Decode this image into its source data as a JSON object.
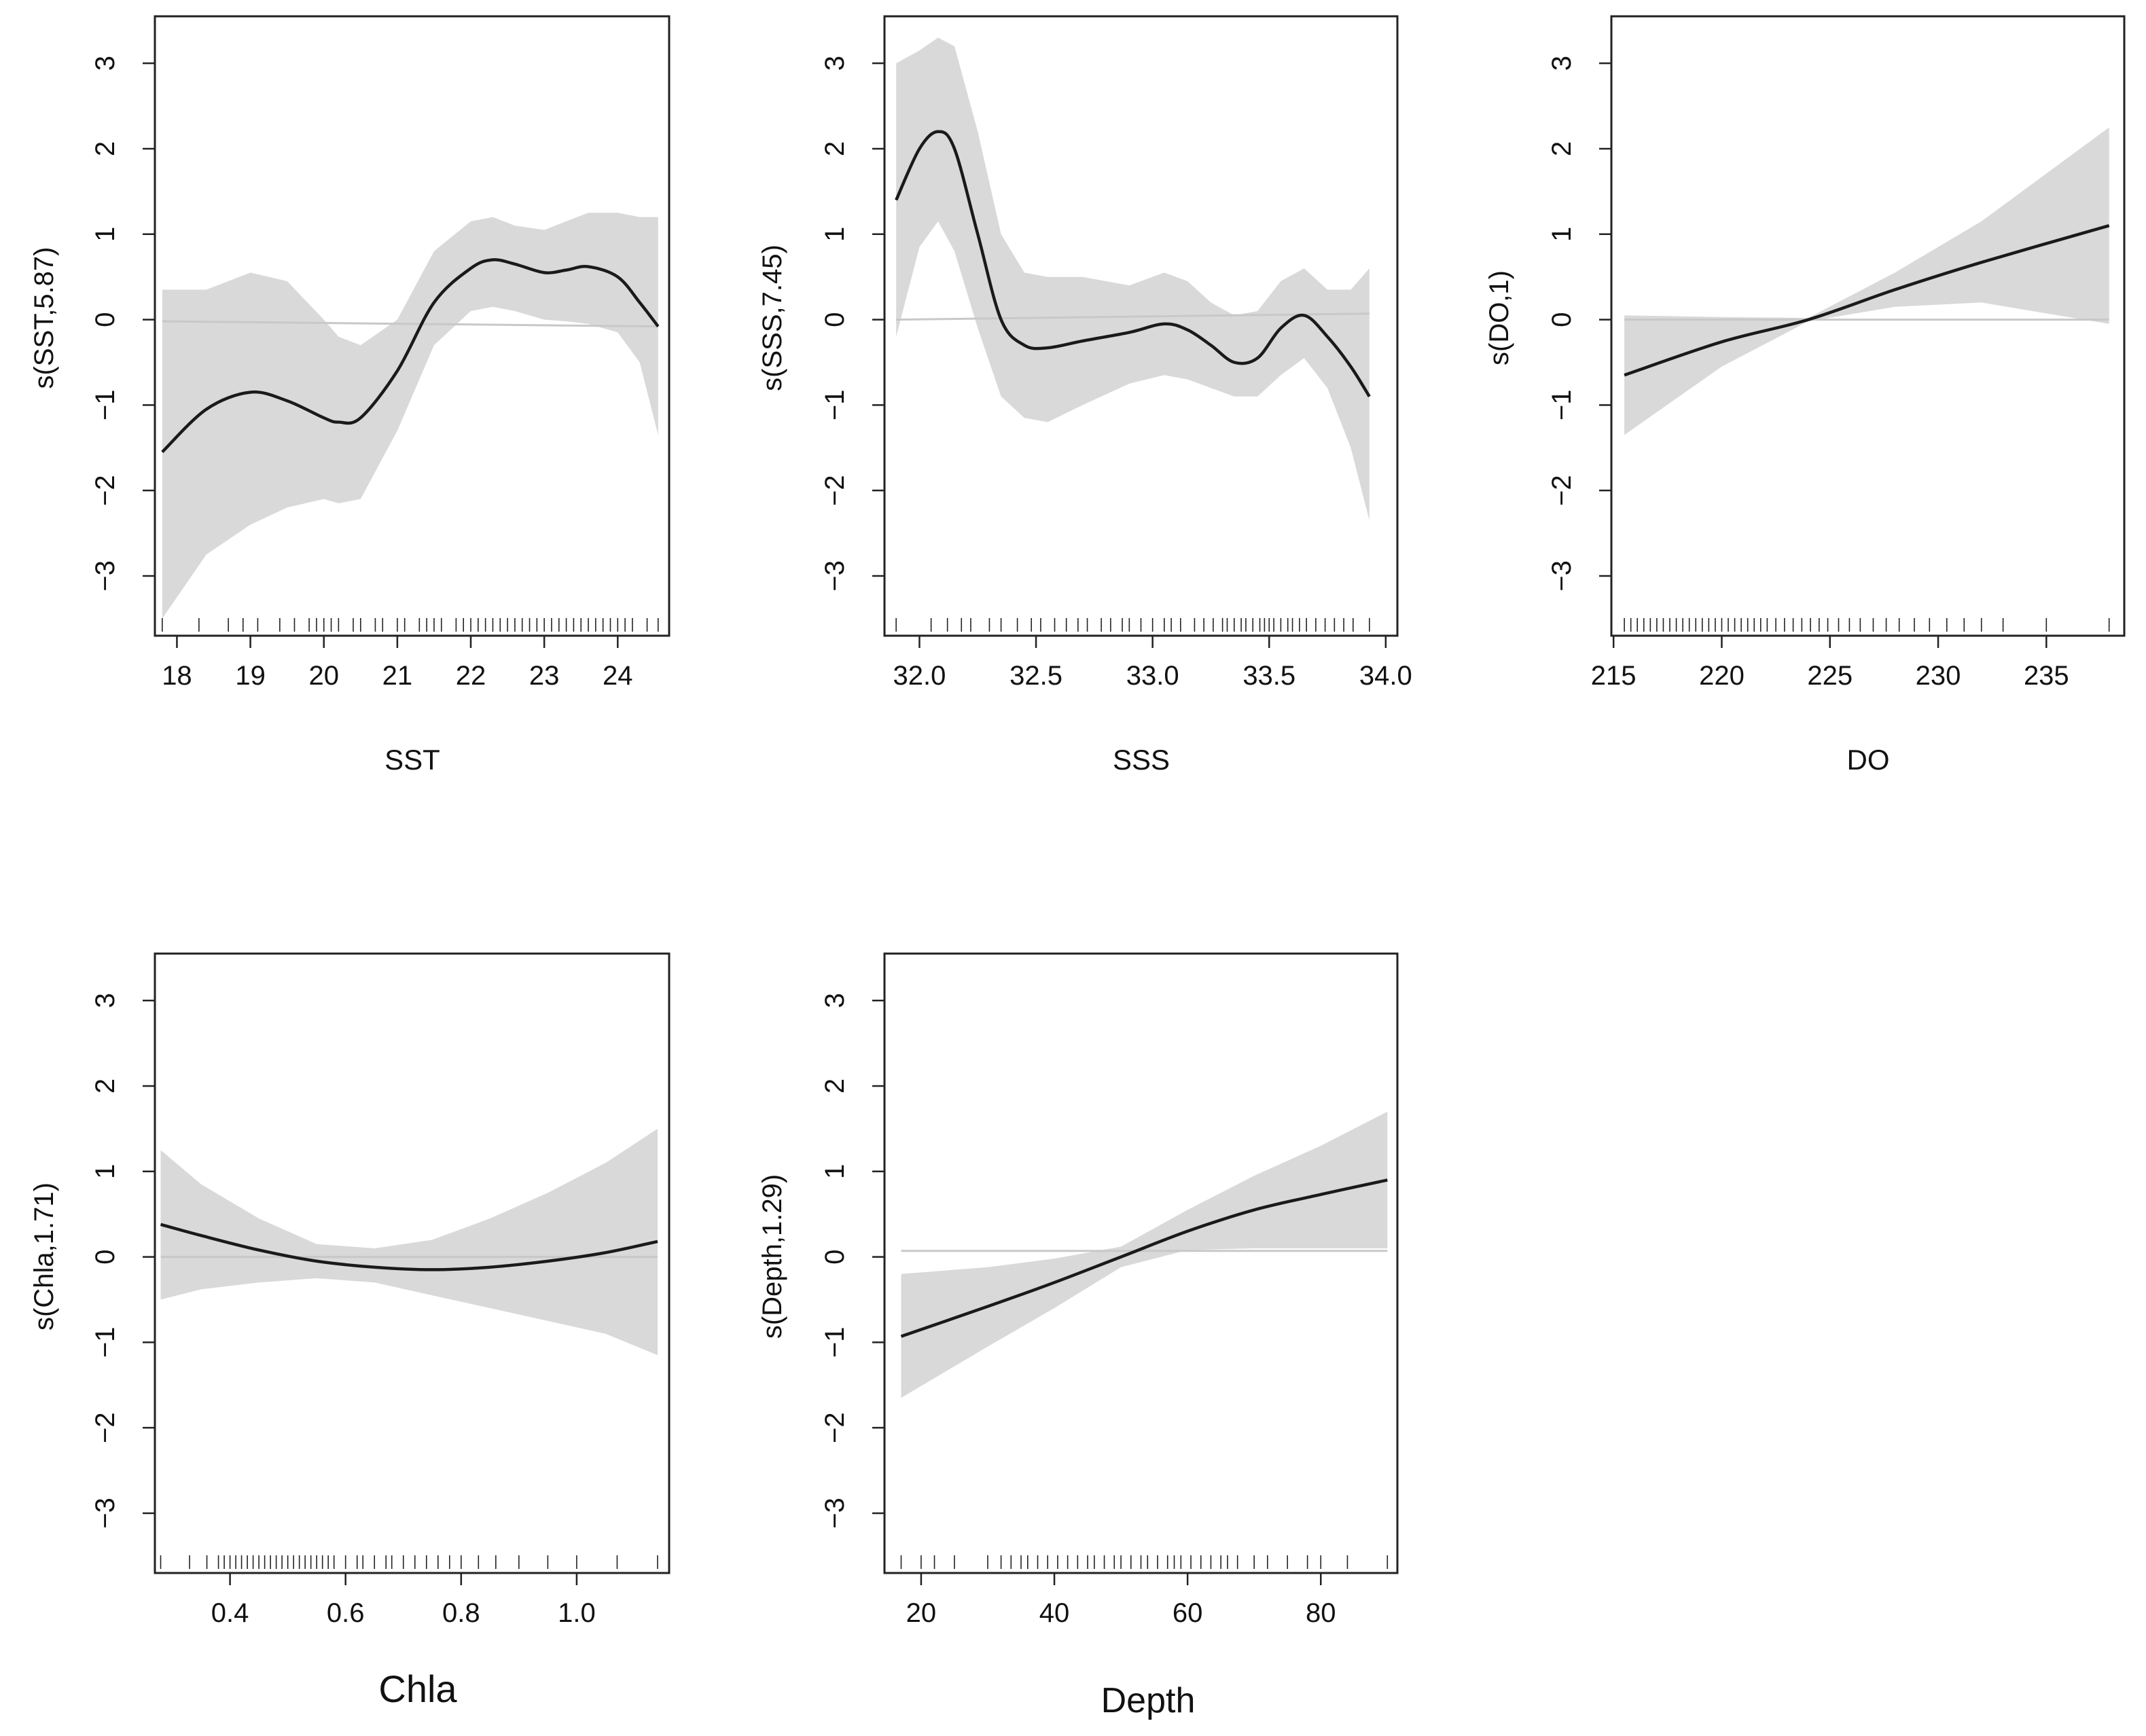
{
  "figure": {
    "background": "#ffffff",
    "band_color": "#d9d9d9",
    "line_color": "#1a1a1a",
    "zero_line_color": "#c8c8c8"
  },
  "chart_data": [
    {
      "type": "line",
      "xlabel": "SST",
      "ylabel": "s(SST,5.87)",
      "xlim": [
        17.7,
        24.7
      ],
      "ylim": [
        -3.7,
        3.55
      ],
      "xticks": [
        18,
        19,
        20,
        21,
        22,
        23,
        24
      ],
      "xtick_labels": [
        "18",
        "19",
        "20",
        "21",
        "22",
        "23",
        "24"
      ],
      "yticks": [
        -3,
        -2,
        -1,
        0,
        1,
        2,
        3
      ],
      "ytick_labels": [
        "−3",
        "−2",
        "−1",
        "0",
        "1",
        "2",
        "3"
      ],
      "x": [
        17.8,
        18.4,
        19.0,
        19.5,
        20.0,
        20.2,
        20.5,
        21.0,
        21.5,
        22.0,
        22.3,
        22.6,
        23.0,
        23.3,
        23.6,
        24.0,
        24.3,
        24.55
      ],
      "y": [
        -1.55,
        -1.05,
        -0.85,
        -0.95,
        -1.15,
        -1.2,
        -1.15,
        -0.6,
        0.2,
        0.6,
        0.7,
        0.65,
        0.55,
        0.58,
        0.62,
        0.5,
        0.2,
        -0.08
      ],
      "upper": [
        0.35,
        0.35,
        0.55,
        0.45,
        0.0,
        -0.2,
        -0.3,
        0.0,
        0.8,
        1.15,
        1.2,
        1.1,
        1.05,
        1.15,
        1.25,
        1.25,
        1.2,
        1.2
      ],
      "lower": [
        -3.5,
        -2.75,
        -2.4,
        -2.2,
        -2.1,
        -2.15,
        -2.1,
        -1.3,
        -0.3,
        0.1,
        0.15,
        0.1,
        0.0,
        -0.02,
        -0.05,
        -0.15,
        -0.5,
        -1.35
      ],
      "zero_line": [
        -0.02,
        -0.08
      ],
      "rug": [
        17.8,
        18.3,
        18.7,
        18.9,
        19.1,
        19.4,
        19.6,
        19.8,
        19.9,
        20.0,
        20.1,
        20.2,
        20.4,
        20.5,
        20.7,
        20.8,
        21.0,
        21.1,
        21.3,
        21.4,
        21.5,
        21.6,
        21.8,
        21.9,
        22.0,
        22.1,
        22.2,
        22.3,
        22.4,
        22.5,
        22.6,
        22.7,
        22.8,
        22.9,
        23.0,
        23.1,
        23.2,
        23.3,
        23.4,
        23.5,
        23.6,
        23.7,
        23.8,
        23.9,
        24.0,
        24.1,
        24.2,
        24.4,
        24.55
      ]
    },
    {
      "type": "line",
      "xlabel": "SSS",
      "ylabel": "s(SSS,7.45)",
      "xlim": [
        31.85,
        34.05
      ],
      "ylim": [
        -3.7,
        3.55
      ],
      "xticks": [
        32.0,
        32.5,
        33.0,
        33.5,
        34.0
      ],
      "xtick_labels": [
        "32.0",
        "32.5",
        "33.0",
        "33.5",
        "34.0"
      ],
      "yticks": [
        -3,
        -2,
        -1,
        0,
        1,
        2,
        3
      ],
      "ytick_labels": [
        "−3",
        "−2",
        "−1",
        "0",
        "1",
        "2",
        "3"
      ],
      "x": [
        31.9,
        32.0,
        32.08,
        32.15,
        32.25,
        32.35,
        32.45,
        32.55,
        32.7,
        32.9,
        33.05,
        33.15,
        33.25,
        33.35,
        33.45,
        33.55,
        33.65,
        33.75,
        33.85,
        33.93
      ],
      "y": [
        1.4,
        2.0,
        2.2,
        2.0,
        1.0,
        0.0,
        -0.3,
        -0.33,
        -0.25,
        -0.15,
        -0.05,
        -0.12,
        -0.3,
        -0.5,
        -0.45,
        -0.1,
        0.05,
        -0.2,
        -0.55,
        -0.9
      ],
      "upper": [
        3.0,
        3.15,
        3.3,
        3.2,
        2.2,
        1.0,
        0.55,
        0.5,
        0.5,
        0.4,
        0.55,
        0.45,
        0.2,
        0.05,
        0.1,
        0.45,
        0.6,
        0.35,
        0.35,
        0.6
      ],
      "lower": [
        -0.2,
        0.85,
        1.15,
        0.8,
        -0.1,
        -0.9,
        -1.15,
        -1.2,
        -1.0,
        -0.75,
        -0.65,
        -0.7,
        -0.8,
        -0.9,
        -0.9,
        -0.65,
        -0.45,
        -0.8,
        -1.5,
        -2.35
      ],
      "zero_line": [
        0.0,
        0.07
      ],
      "rug": [
        31.9,
        32.05,
        32.12,
        32.18,
        32.22,
        32.3,
        32.35,
        32.42,
        32.48,
        32.52,
        32.58,
        32.63,
        32.68,
        32.72,
        32.78,
        32.82,
        32.87,
        32.9,
        32.95,
        33.0,
        33.05,
        33.08,
        33.12,
        33.18,
        33.22,
        33.26,
        33.3,
        33.32,
        33.35,
        33.38,
        33.4,
        33.43,
        33.46,
        33.48,
        33.5,
        33.52,
        33.55,
        33.58,
        33.6,
        33.63,
        33.66,
        33.7,
        33.74,
        33.78,
        33.82,
        33.86,
        33.93
      ]
    },
    {
      "type": "line",
      "xlabel": "DO",
      "ylabel": "s(DO,1)",
      "xlim": [
        214.9,
        238.6
      ],
      "ylim": [
        -3.7,
        3.55
      ],
      "xticks": [
        215,
        220,
        225,
        230,
        235
      ],
      "xtick_labels": [
        "215",
        "220",
        "225",
        "230",
        "235"
      ],
      "yticks": [
        -3,
        -2,
        -1,
        0,
        1,
        2,
        3
      ],
      "ytick_labels": [
        "−3",
        "−2",
        "−1",
        "0",
        "1",
        "2",
        "3"
      ],
      "x": [
        215.5,
        220.0,
        224.0,
        228.0,
        232.0,
        237.9
      ],
      "y": [
        -0.65,
        -0.26,
        0.0,
        0.35,
        0.67,
        1.1
      ],
      "upper": [
        0.05,
        0.03,
        0.02,
        0.55,
        1.15,
        2.25
      ],
      "lower": [
        -1.35,
        -0.55,
        -0.02,
        0.15,
        0.2,
        -0.05
      ],
      "zero_line": [
        0.0,
        0.0
      ],
      "rug": [
        215.5,
        215.8,
        216.1,
        216.4,
        216.7,
        217.0,
        217.3,
        217.6,
        217.9,
        218.2,
        218.5,
        218.8,
        219.1,
        219.4,
        219.7,
        220.0,
        220.3,
        220.6,
        220.9,
        221.2,
        221.5,
        221.8,
        222.1,
        222.5,
        222.9,
        223.3,
        223.7,
        224.1,
        224.5,
        224.9,
        225.4,
        225.9,
        226.4,
        227.0,
        227.6,
        228.2,
        228.9,
        229.6,
        230.4,
        231.2,
        232.0,
        233.0,
        235.0,
        237.9
      ]
    },
    {
      "type": "line",
      "xlabel": "Chla",
      "ylabel": "s(Chla,1.71)",
      "xlim": [
        0.27,
        1.16
      ],
      "ylim": [
        -3.7,
        3.55
      ],
      "xticks": [
        0.4,
        0.6,
        0.8,
        1.0
      ],
      "xtick_labels": [
        "0.4",
        "0.6",
        "0.8",
        "1.0"
      ],
      "yticks": [
        -3,
        -2,
        -1,
        0,
        1,
        2,
        3
      ],
      "ytick_labels": [
        "−3",
        "−2",
        "−1",
        "0",
        "1",
        "2",
        "3"
      ],
      "x": [
        0.28,
        0.35,
        0.45,
        0.55,
        0.65,
        0.75,
        0.85,
        0.95,
        1.05,
        1.14
      ],
      "y": [
        0.38,
        0.25,
        0.08,
        -0.05,
        -0.12,
        -0.15,
        -0.12,
        -0.05,
        0.05,
        0.18
      ],
      "upper": [
        1.25,
        0.85,
        0.45,
        0.15,
        0.1,
        0.2,
        0.45,
        0.75,
        1.1,
        1.5
      ],
      "lower": [
        -0.5,
        -0.38,
        -0.3,
        -0.25,
        -0.3,
        -0.45,
        -0.6,
        -0.75,
        -0.9,
        -1.15
      ],
      "zero_line": [
        0.0,
        0.0
      ],
      "rug": [
        0.28,
        0.33,
        0.36,
        0.38,
        0.39,
        0.4,
        0.41,
        0.42,
        0.43,
        0.44,
        0.45,
        0.46,
        0.47,
        0.48,
        0.49,
        0.5,
        0.51,
        0.52,
        0.53,
        0.54,
        0.55,
        0.56,
        0.57,
        0.58,
        0.6,
        0.62,
        0.63,
        0.65,
        0.67,
        0.68,
        0.7,
        0.72,
        0.74,
        0.76,
        0.78,
        0.8,
        0.83,
        0.86,
        0.9,
        0.95,
        1.0,
        1.07,
        1.14
      ]
    },
    {
      "type": "line",
      "xlabel": "Depth",
      "ylabel": "s(Depth,1.29)",
      "xlim": [
        14.5,
        91.5
      ],
      "ylim": [
        -3.7,
        3.55
      ],
      "xticks": [
        20,
        40,
        60,
        80
      ],
      "xtick_labels": [
        "20",
        "40",
        "60",
        "80"
      ],
      "yticks": [
        -3,
        -2,
        -1,
        0,
        1,
        2,
        3
      ],
      "ytick_labels": [
        "−3",
        "−2",
        "−1",
        "0",
        "1",
        "2",
        "3"
      ],
      "x": [
        17.0,
        30.0,
        40.0,
        50.0,
        60.0,
        70.0,
        80.0,
        90.0
      ],
      "y": [
        -0.93,
        -0.58,
        -0.3,
        0.0,
        0.3,
        0.55,
        0.73,
        0.9
      ],
      "upper": [
        -0.2,
        -0.12,
        -0.02,
        0.12,
        0.55,
        0.95,
        1.3,
        1.7
      ],
      "lower": [
        -1.65,
        -1.05,
        -0.6,
        -0.12,
        0.08,
        0.1,
        0.1,
        0.1
      ],
      "zero_line": [
        0.07,
        0.07
      ],
      "rug": [
        17.0,
        20.0,
        22.0,
        25.0,
        30.0,
        32.0,
        33.5,
        35.0,
        36.0,
        37.5,
        39.0,
        40.5,
        42.0,
        43.5,
        45.0,
        46.0,
        47.5,
        49.0,
        50.0,
        51.5,
        53.0,
        54.0,
        55.5,
        57.0,
        58.0,
        59.0,
        60.5,
        62.0,
        63.5,
        65.0,
        66.0,
        67.5,
        70.0,
        72.0,
        75.0,
        78.0,
        80.0,
        84.0,
        90.0
      ]
    }
  ]
}
